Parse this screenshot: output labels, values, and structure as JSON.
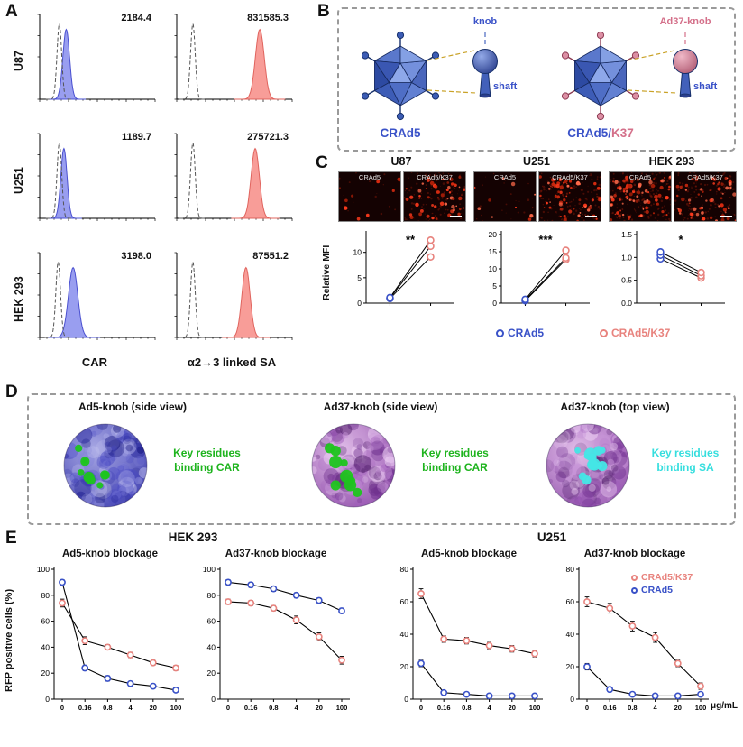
{
  "colors": {
    "blue": "#3a52c8",
    "red": "#e8837e",
    "blue_fill": "#8e93ee",
    "red_fill": "#f7928d",
    "green": "#1eb41e",
    "cyan": "#35dede",
    "virus_blue": "#3c5cb4",
    "knob_pink": "#d4708a",
    "control_gray": "#555555"
  },
  "panelA": {
    "label": "A",
    "row_labels": [
      "U87",
      "U251",
      "HEK 293"
    ],
    "col_labels": [
      "CAR",
      "α2→3 linked SA"
    ],
    "values": [
      [
        "2184.4",
        "831585.3"
      ],
      [
        "1189.7",
        "275721.3"
      ],
      [
        "3198.0",
        "87551.2"
      ]
    ]
  },
  "panelB": {
    "label": "B",
    "left": {
      "name": "CRAd5",
      "knob_label": "knob",
      "shaft_label": "shaft"
    },
    "right": {
      "name_parts": [
        "CRAd5/",
        "K37"
      ],
      "knob_label": "Ad37-knob",
      "shaft_label": "shaft"
    },
    "graphic": {
      "type": "viruspair"
    }
  },
  "panelC": {
    "label": "C",
    "ylabel": "Relative MFI",
    "groups": [
      {
        "title": "U87",
        "images": [
          {
            "type": "fluor",
            "label": "CRAd5",
            "dots": 9,
            "seed": 11
          },
          {
            "type": "fluor",
            "label": "CRAd5/K37",
            "dots": 55,
            "seed": 12,
            "scalebar": true
          }
        ]
      },
      {
        "title": "U251",
        "images": [
          {
            "type": "fluor",
            "label": "CRAd5",
            "dots": 12,
            "seed": 21
          },
          {
            "type": "fluor",
            "label": "CRAd5/K37",
            "dots": 65,
            "seed": 22,
            "scalebar": true
          }
        ]
      },
      {
        "title": "HEK 293",
        "images": [
          {
            "type": "fluor",
            "label": "CRAd5",
            "dots": 85,
            "seed": 31
          },
          {
            "type": "fluor",
            "label": "CRAd5/K37",
            "dots": 60,
            "seed": 32,
            "scalebar": true
          }
        ]
      }
    ],
    "legend": [
      {
        "label": "CRAd5",
        "color": "#3a52c8"
      },
      {
        "label": "CRAd5/K37",
        "color": "#e8837e"
      }
    ]
  },
  "panelD": {
    "label": "D",
    "items": [
      {
        "title": "Ad5-knob (side view)",
        "caption_lines": [
          "Key residues",
          "binding CAR"
        ],
        "caption_color": "#1eb41e",
        "blob": {
          "type": "blob",
          "scheme": "blue",
          "patch_color": "#1ec41e",
          "patch_layout": "side",
          "seed": 5
        }
      },
      {
        "title": "Ad37-knob (side view)",
        "caption_lines": [
          "Key residues",
          "binding CAR"
        ],
        "caption_color": "#1eb41e",
        "blob": {
          "type": "blob",
          "scheme": "purple",
          "patch_color": "#1ec41e",
          "patch_layout": "side",
          "seed": 9
        }
      },
      {
        "title": "Ad37-knob (top view)",
        "caption_lines": [
          "Key residues",
          "binding SA"
        ],
        "caption_color": "#35dede",
        "blob": {
          "type": "blob",
          "scheme": "purple",
          "patch_color": "#45e6e6",
          "patch_layout": "center",
          "seed": 13
        }
      }
    ]
  },
  "panelE": {
    "label": "E",
    "ylabel": "RFP positive cells (%)",
    "group_titles": [
      "HEK 293",
      "U251"
    ],
    "x_unit": "μg/mL",
    "legend": [
      {
        "label": "CRAd5/K37",
        "color": "#e8837e"
      },
      {
        "label": "CRAd5",
        "color": "#3a52c8"
      }
    ]
  },
  "chart_data": [
    {
      "type": "hist",
      "panel": "A",
      "cell": "U87",
      "marker": "CAR",
      "mfi": "2184.4",
      "fill": "#8e93ee",
      "edge": "#4a50d0",
      "ctrl_peak": 0.17,
      "peak": 0.23,
      "peak_w": 0.065
    },
    {
      "type": "hist",
      "panel": "A",
      "cell": "U87",
      "marker": "α2→3 linked SA",
      "mfi": "831585.3",
      "fill": "#f7928d",
      "edge": "#e0645e",
      "ctrl_peak": 0.14,
      "peak": 0.72,
      "peak_w": 0.085
    },
    {
      "type": "hist",
      "panel": "A",
      "cell": "U251",
      "marker": "CAR",
      "mfi": "1189.7",
      "fill": "#8e93ee",
      "edge": "#4a50d0",
      "ctrl_peak": 0.17,
      "peak": 0.21,
      "peak_w": 0.06
    },
    {
      "type": "hist",
      "panel": "A",
      "cell": "U251",
      "marker": "α2→3 linked SA",
      "mfi": "275721.3",
      "fill": "#f7928d",
      "edge": "#e0645e",
      "ctrl_peak": 0.14,
      "peak": 0.68,
      "peak_w": 0.08
    },
    {
      "type": "hist",
      "panel": "A",
      "cell": "HEK 293",
      "marker": "CAR",
      "mfi": "3198.0",
      "fill": "#8e93ee",
      "edge": "#4a50d0",
      "ctrl_peak": 0.16,
      "peak": 0.29,
      "peak_w": 0.09
    },
    {
      "type": "hist",
      "panel": "A",
      "cell": "HEK 293",
      "marker": "α2→3 linked SA",
      "mfi": "87551.2",
      "fill": "#f7928d",
      "edge": "#e0645e",
      "ctrl_peak": 0.14,
      "peak": 0.6,
      "peak_w": 0.08
    },
    {
      "type": "dotplot",
      "panel": "C",
      "cell": "U87",
      "ylabel": "Relative MFI",
      "sig": "**",
      "ylim": [
        0,
        13.5
      ],
      "yticks": [
        0,
        5,
        10
      ],
      "series_labels": [
        "CRAd5",
        "CRAd5/K37"
      ],
      "crad5": [
        0.9,
        1.0,
        1.1
      ],
      "crad5k37": [
        9.1,
        11.2,
        12.4
      ]
    },
    {
      "type": "dotplot",
      "panel": "C",
      "cell": "U251",
      "sig": "***",
      "ylim": [
        0,
        20
      ],
      "yticks": [
        0,
        5,
        10,
        15,
        20
      ],
      "series_labels": [
        "CRAd5",
        "CRAd5/K37"
      ],
      "crad5": [
        0.7,
        0.9,
        1.1
      ],
      "crad5k37": [
        12.7,
        13.2,
        15.4
      ]
    },
    {
      "type": "dotplot",
      "panel": "C",
      "cell": "HEK 293",
      "sig": "*",
      "ylim": [
        0,
        1.5
      ],
      "yticks": [
        0,
        0.5,
        1,
        1.5
      ],
      "series_labels": [
        "CRAd5",
        "CRAd5/K37"
      ],
      "crad5": [
        0.97,
        1.05,
        1.12
      ],
      "crad5k37": [
        0.55,
        0.6,
        0.67
      ]
    },
    {
      "type": "line",
      "panel": "E",
      "cell": "HEK 293",
      "title": "Ad5-knob blockage",
      "x": [
        "0",
        "0.16",
        "0.8",
        "4",
        "20",
        "100"
      ],
      "x_unit": "μg/mL",
      "ylim": [
        0,
        100
      ],
      "yticks": [
        0,
        20,
        40,
        60,
        80,
        100
      ],
      "series": [
        {
          "name": "CRAd5/K37",
          "color": "#e8837e",
          "values": [
            74,
            45,
            40,
            34,
            28,
            24
          ],
          "errors": [
            3,
            3,
            2,
            2,
            2,
            2
          ]
        },
        {
          "name": "CRAd5",
          "color": "#3a52c8",
          "values": [
            90,
            24,
            16,
            12,
            10,
            7
          ],
          "errors": [
            2,
            2,
            2,
            1,
            1,
            1
          ]
        }
      ]
    },
    {
      "type": "line",
      "panel": "E",
      "cell": "HEK 293",
      "title": "Ad37-knob blockage",
      "x": [
        "0",
        "0.16",
        "0.8",
        "4",
        "20",
        "100"
      ],
      "ylim": [
        0,
        100
      ],
      "yticks": [
        0,
        20,
        40,
        60,
        80,
        100
      ],
      "series": [
        {
          "name": "CRAd5/K37",
          "color": "#e8837e",
          "values": [
            75,
            74,
            70,
            61,
            48,
            30
          ],
          "errors": [
            2,
            2,
            2,
            3,
            3,
            3
          ]
        },
        {
          "name": "CRAd5",
          "color": "#3a52c8",
          "values": [
            90,
            88,
            85,
            80,
            76,
            68
          ],
          "errors": [
            2,
            2,
            2,
            2,
            2,
            2
          ]
        }
      ]
    },
    {
      "type": "line",
      "panel": "E",
      "cell": "U251",
      "title": "Ad5-knob blockage",
      "x": [
        "0",
        "0.16",
        "0.8",
        "4",
        "20",
        "100"
      ],
      "ylim": [
        0,
        80
      ],
      "yticks": [
        0,
        20,
        40,
        60,
        80
      ],
      "series": [
        {
          "name": "CRAd5/K37",
          "color": "#e8837e",
          "values": [
            65,
            37,
            36,
            33,
            31,
            28
          ],
          "errors": [
            3,
            2,
            2,
            2,
            2,
            2
          ]
        },
        {
          "name": "CRAd5",
          "color": "#3a52c8",
          "values": [
            22,
            4,
            3,
            2,
            2,
            2
          ],
          "errors": [
            2,
            1,
            1,
            1,
            1,
            1
          ]
        }
      ]
    },
    {
      "type": "line",
      "panel": "E",
      "cell": "U251",
      "title": "Ad37-knob blockage",
      "x": [
        "0",
        "0.16",
        "0.8",
        "4",
        "20",
        "100"
      ],
      "ylim": [
        0,
        80
      ],
      "yticks": [
        0,
        20,
        40,
        60,
        80
      ],
      "legend": true,
      "series": [
        {
          "name": "CRAd5/K37",
          "color": "#e8837e",
          "values": [
            60,
            56,
            45,
            38,
            22,
            8
          ],
          "errors": [
            3,
            3,
            3,
            3,
            2,
            2
          ]
        },
        {
          "name": "CRAd5",
          "color": "#3a52c8",
          "values": [
            20,
            6,
            3,
            2,
            2,
            3
          ],
          "errors": [
            2,
            1,
            1,
            1,
            1,
            1
          ]
        }
      ]
    }
  ]
}
